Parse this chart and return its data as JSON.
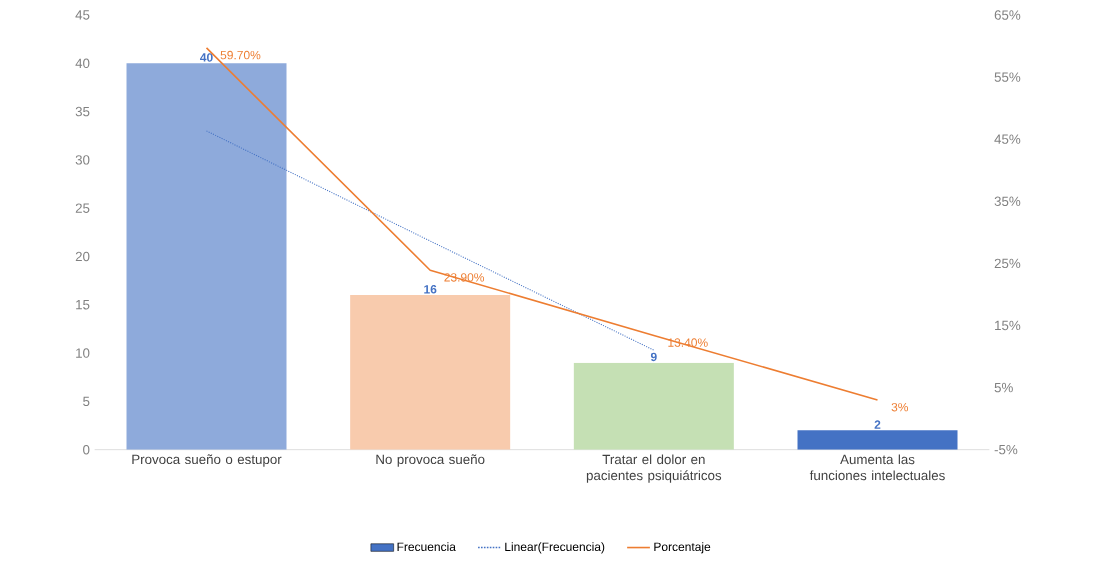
{
  "chart_data": {
    "type": "bar",
    "categories": [
      "Provoca sueño o estupor",
      "No provoca sueño",
      "Tratar el dolor en pacientes psiquiátricos",
      "Aumenta las funciones intelectuales"
    ],
    "series": [
      {
        "name": "Frecuencia",
        "color": "#4472c4",
        "colors": [
          "#8eaadb",
          "#f8cbad",
          "#c5e0b4",
          "#4472c4"
        ],
        "values": [
          40,
          16,
          9,
          2
        ],
        "value_labels": [
          "40",
          "16",
          "9",
          "2"
        ]
      },
      {
        "name": "Linear(Frecuencia)",
        "type": "line",
        "line_style": "dotted",
        "color": "#4472c4",
        "values": [
          33,
          21.6,
          10.3,
          null
        ]
      },
      {
        "name": "Porcentaje",
        "type": "line",
        "axis": "y2",
        "color": "#ed7d31",
        "values": [
          59.7,
          23.9,
          13.4,
          3
        ],
        "value_labels": [
          "59.70%",
          "23.90%",
          "13.40%",
          "3%"
        ]
      }
    ],
    "ylim": [
      0,
      45
    ],
    "yticks": [
      0,
      5,
      10,
      15,
      20,
      25,
      30,
      35,
      40,
      45
    ],
    "y2lim": [
      -5,
      65
    ],
    "y2ticks": [
      {
        "value": -5,
        "label": "-5%"
      },
      {
        "value": 5,
        "label": "5%"
      },
      {
        "value": 15,
        "label": "15%"
      },
      {
        "value": 25,
        "label": "25%"
      },
      {
        "value": 35,
        "label": "35%"
      },
      {
        "value": 45,
        "label": "45%"
      },
      {
        "value": 55,
        "label": "55%"
      },
      {
        "value": 65,
        "label": "65%"
      }
    ],
    "legend": "bottom"
  }
}
